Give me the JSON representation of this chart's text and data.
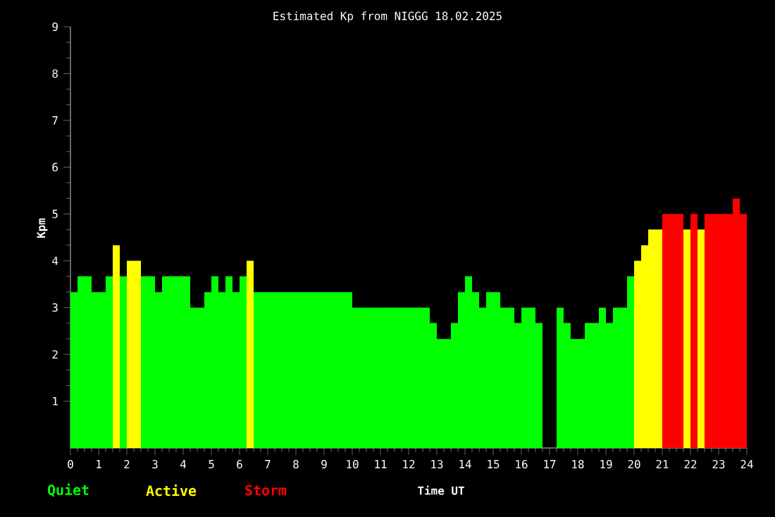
{
  "chart_data": {
    "type": "bar",
    "title": "Estimated Kp from NIGGG 18.02.2025",
    "xlabel": "Time UT",
    "ylabel": "Kpm",
    "x": [
      0.125,
      0.375,
      0.625,
      0.875,
      1.125,
      1.375,
      1.625,
      1.875,
      2.125,
      2.375,
      2.625,
      2.875,
      3.125,
      3.375,
      3.625,
      3.875,
      4.125,
      4.375,
      4.625,
      4.875,
      5.125,
      5.375,
      5.625,
      5.875,
      6.125,
      6.375,
      6.625,
      6.875,
      7.125,
      7.375,
      7.625,
      7.875,
      8.125,
      8.375,
      8.625,
      8.875,
      9.125,
      9.375,
      9.625,
      9.875,
      10.125,
      10.375,
      10.625,
      10.875,
      11.125,
      11.375,
      11.625,
      11.875,
      12.125,
      12.375,
      12.625,
      12.875,
      13.125,
      13.375,
      13.625,
      13.875,
      14.125,
      14.375,
      14.625,
      14.875,
      15.125,
      15.375,
      15.625,
      15.875,
      16.125,
      16.375,
      16.625,
      16.875,
      17.125,
      17.375,
      17.625,
      17.875,
      18.125,
      18.375,
      18.625,
      18.875,
      19.125,
      19.375,
      19.625,
      19.875,
      20.125,
      20.375,
      20.625,
      20.875,
      21.125,
      21.375,
      21.625,
      21.875,
      22.125,
      22.375,
      22.625,
      22.875,
      23.125,
      23.375,
      23.625,
      23.875
    ],
    "series": [
      {
        "name": "Quiet",
        "color": "#00ff00",
        "values": [
          3.33,
          3.67,
          3.67,
          3.33,
          3.33,
          3.67,
          null,
          3.67,
          null,
          null,
          3.67,
          3.67,
          3.33,
          3.67,
          3.67,
          3.67,
          3.67,
          3.0,
          3.0,
          3.33,
          3.67,
          3.33,
          3.67,
          3.33,
          3.67,
          null,
          3.33,
          3.33,
          3.33,
          3.33,
          3.33,
          3.33,
          3.33,
          3.33,
          3.33,
          3.33,
          3.33,
          3.33,
          3.33,
          3.33,
          3.0,
          3.0,
          3.0,
          3.0,
          3.0,
          3.0,
          3.0,
          3.0,
          3.0,
          3.0,
          3.0,
          2.67,
          2.33,
          2.33,
          2.67,
          3.33,
          3.67,
          3.33,
          3.0,
          3.33,
          3.33,
          3.0,
          3.0,
          2.67,
          3.0,
          3.0,
          2.67,
          null,
          null,
          3.0,
          2.67,
          2.33,
          2.33,
          2.67,
          2.67,
          3.0,
          2.67,
          3.0,
          3.0,
          3.67,
          null,
          null,
          null,
          null,
          null,
          null,
          null,
          null,
          null,
          null,
          null,
          null,
          null,
          null,
          null,
          null
        ]
      },
      {
        "name": "Active",
        "color": "#ffff00",
        "values": [
          null,
          null,
          null,
          null,
          null,
          null,
          4.33,
          null,
          4.0,
          4.0,
          null,
          null,
          null,
          null,
          null,
          null,
          null,
          null,
          null,
          null,
          null,
          null,
          null,
          null,
          null,
          4.0,
          null,
          null,
          null,
          null,
          null,
          null,
          null,
          null,
          null,
          null,
          null,
          null,
          null,
          null,
          null,
          null,
          null,
          null,
          null,
          null,
          null,
          null,
          null,
          null,
          null,
          null,
          null,
          null,
          null,
          null,
          null,
          null,
          null,
          null,
          null,
          null,
          null,
          null,
          null,
          null,
          null,
          null,
          null,
          null,
          null,
          null,
          null,
          null,
          null,
          null,
          null,
          null,
          null,
          null,
          4.0,
          4.33,
          4.67,
          4.67,
          null,
          null,
          null,
          4.67,
          null,
          4.67,
          null,
          null,
          null,
          null,
          null,
          null
        ]
      },
      {
        "name": "Storm",
        "color": "#ff0000",
        "values": [
          null,
          null,
          null,
          null,
          null,
          null,
          null,
          null,
          null,
          null,
          null,
          null,
          null,
          null,
          null,
          null,
          null,
          null,
          null,
          null,
          null,
          null,
          null,
          null,
          null,
          null,
          null,
          null,
          null,
          null,
          null,
          null,
          null,
          null,
          null,
          null,
          null,
          null,
          null,
          null,
          null,
          null,
          null,
          null,
          null,
          null,
          null,
          null,
          null,
          null,
          null,
          null,
          null,
          null,
          null,
          null,
          null,
          null,
          null,
          null,
          null,
          null,
          null,
          null,
          null,
          null,
          null,
          null,
          null,
          null,
          null,
          null,
          null,
          null,
          null,
          null,
          null,
          null,
          null,
          null,
          null,
          null,
          null,
          null,
          5.0,
          5.0,
          5.0,
          null,
          5.0,
          null,
          5.0,
          5.0,
          5.0,
          5.0,
          5.33,
          5.0
        ]
      }
    ],
    "xlim": [
      0,
      24
    ],
    "xticks": [
      0,
      1,
      2,
      3,
      4,
      5,
      6,
      7,
      8,
      9,
      10,
      11,
      12,
      13,
      14,
      15,
      16,
      17,
      18,
      19,
      20,
      21,
      22,
      23,
      24
    ],
    "ylim": [
      0,
      9
    ],
    "yticks": [
      1,
      2,
      3,
      4,
      5,
      6,
      7,
      8,
      9
    ],
    "legend": "bottom"
  }
}
